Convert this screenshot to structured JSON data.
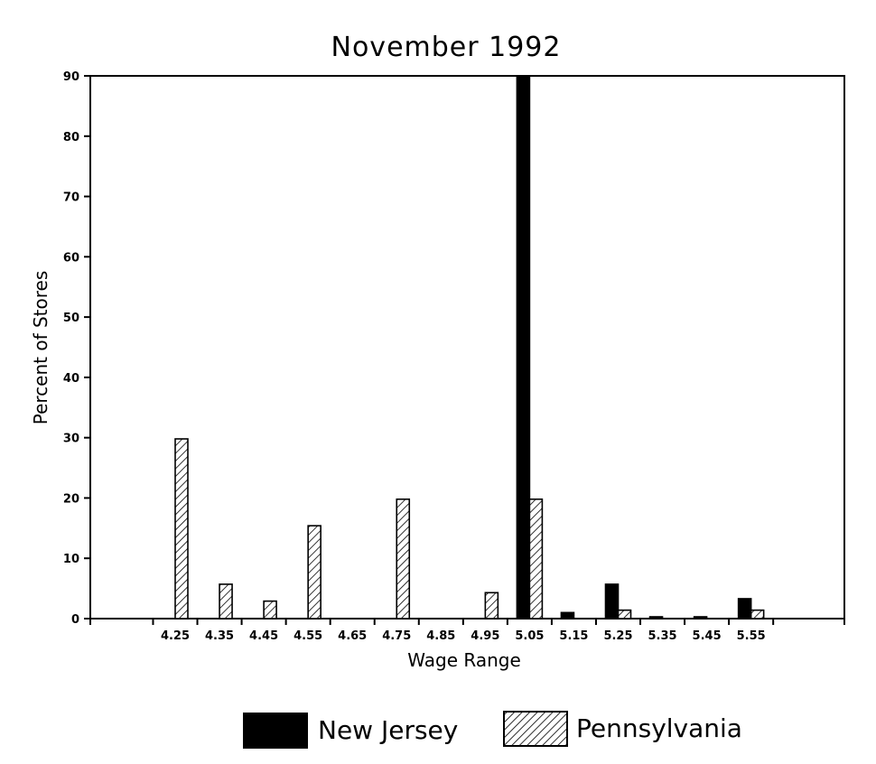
{
  "chart_data": {
    "type": "bar",
    "title": "November 1992",
    "xlabel": "Wage Range",
    "ylabel": "Percent of Stores",
    "categories": [
      "4.25",
      "4.35",
      "4.45",
      "4.55",
      "4.65",
      "4.75",
      "4.85",
      "4.95",
      "5.05",
      "5.15",
      "5.25",
      "5.35",
      "5.45",
      "5.55"
    ],
    "ylim": [
      0,
      90
    ],
    "yticks": [
      0,
      10,
      20,
      30,
      40,
      50,
      60,
      70,
      80,
      90
    ],
    "grid": false,
    "legend_position": "bottom",
    "series": [
      {
        "name": "New Jersey",
        "fill": "solid",
        "color": "#000000",
        "values": [
          0,
          0,
          0,
          0,
          0,
          0,
          0,
          0,
          90,
          1,
          5.7,
          0.3,
          0.3,
          3.3
        ]
      },
      {
        "name": "Pennsylvania",
        "fill": "hatched",
        "color": "#000000",
        "values": [
          29.8,
          5.7,
          2.9,
          15.4,
          0,
          19.8,
          0,
          4.3,
          19.8,
          0,
          1.4,
          0,
          0,
          1.4
        ]
      }
    ]
  }
}
